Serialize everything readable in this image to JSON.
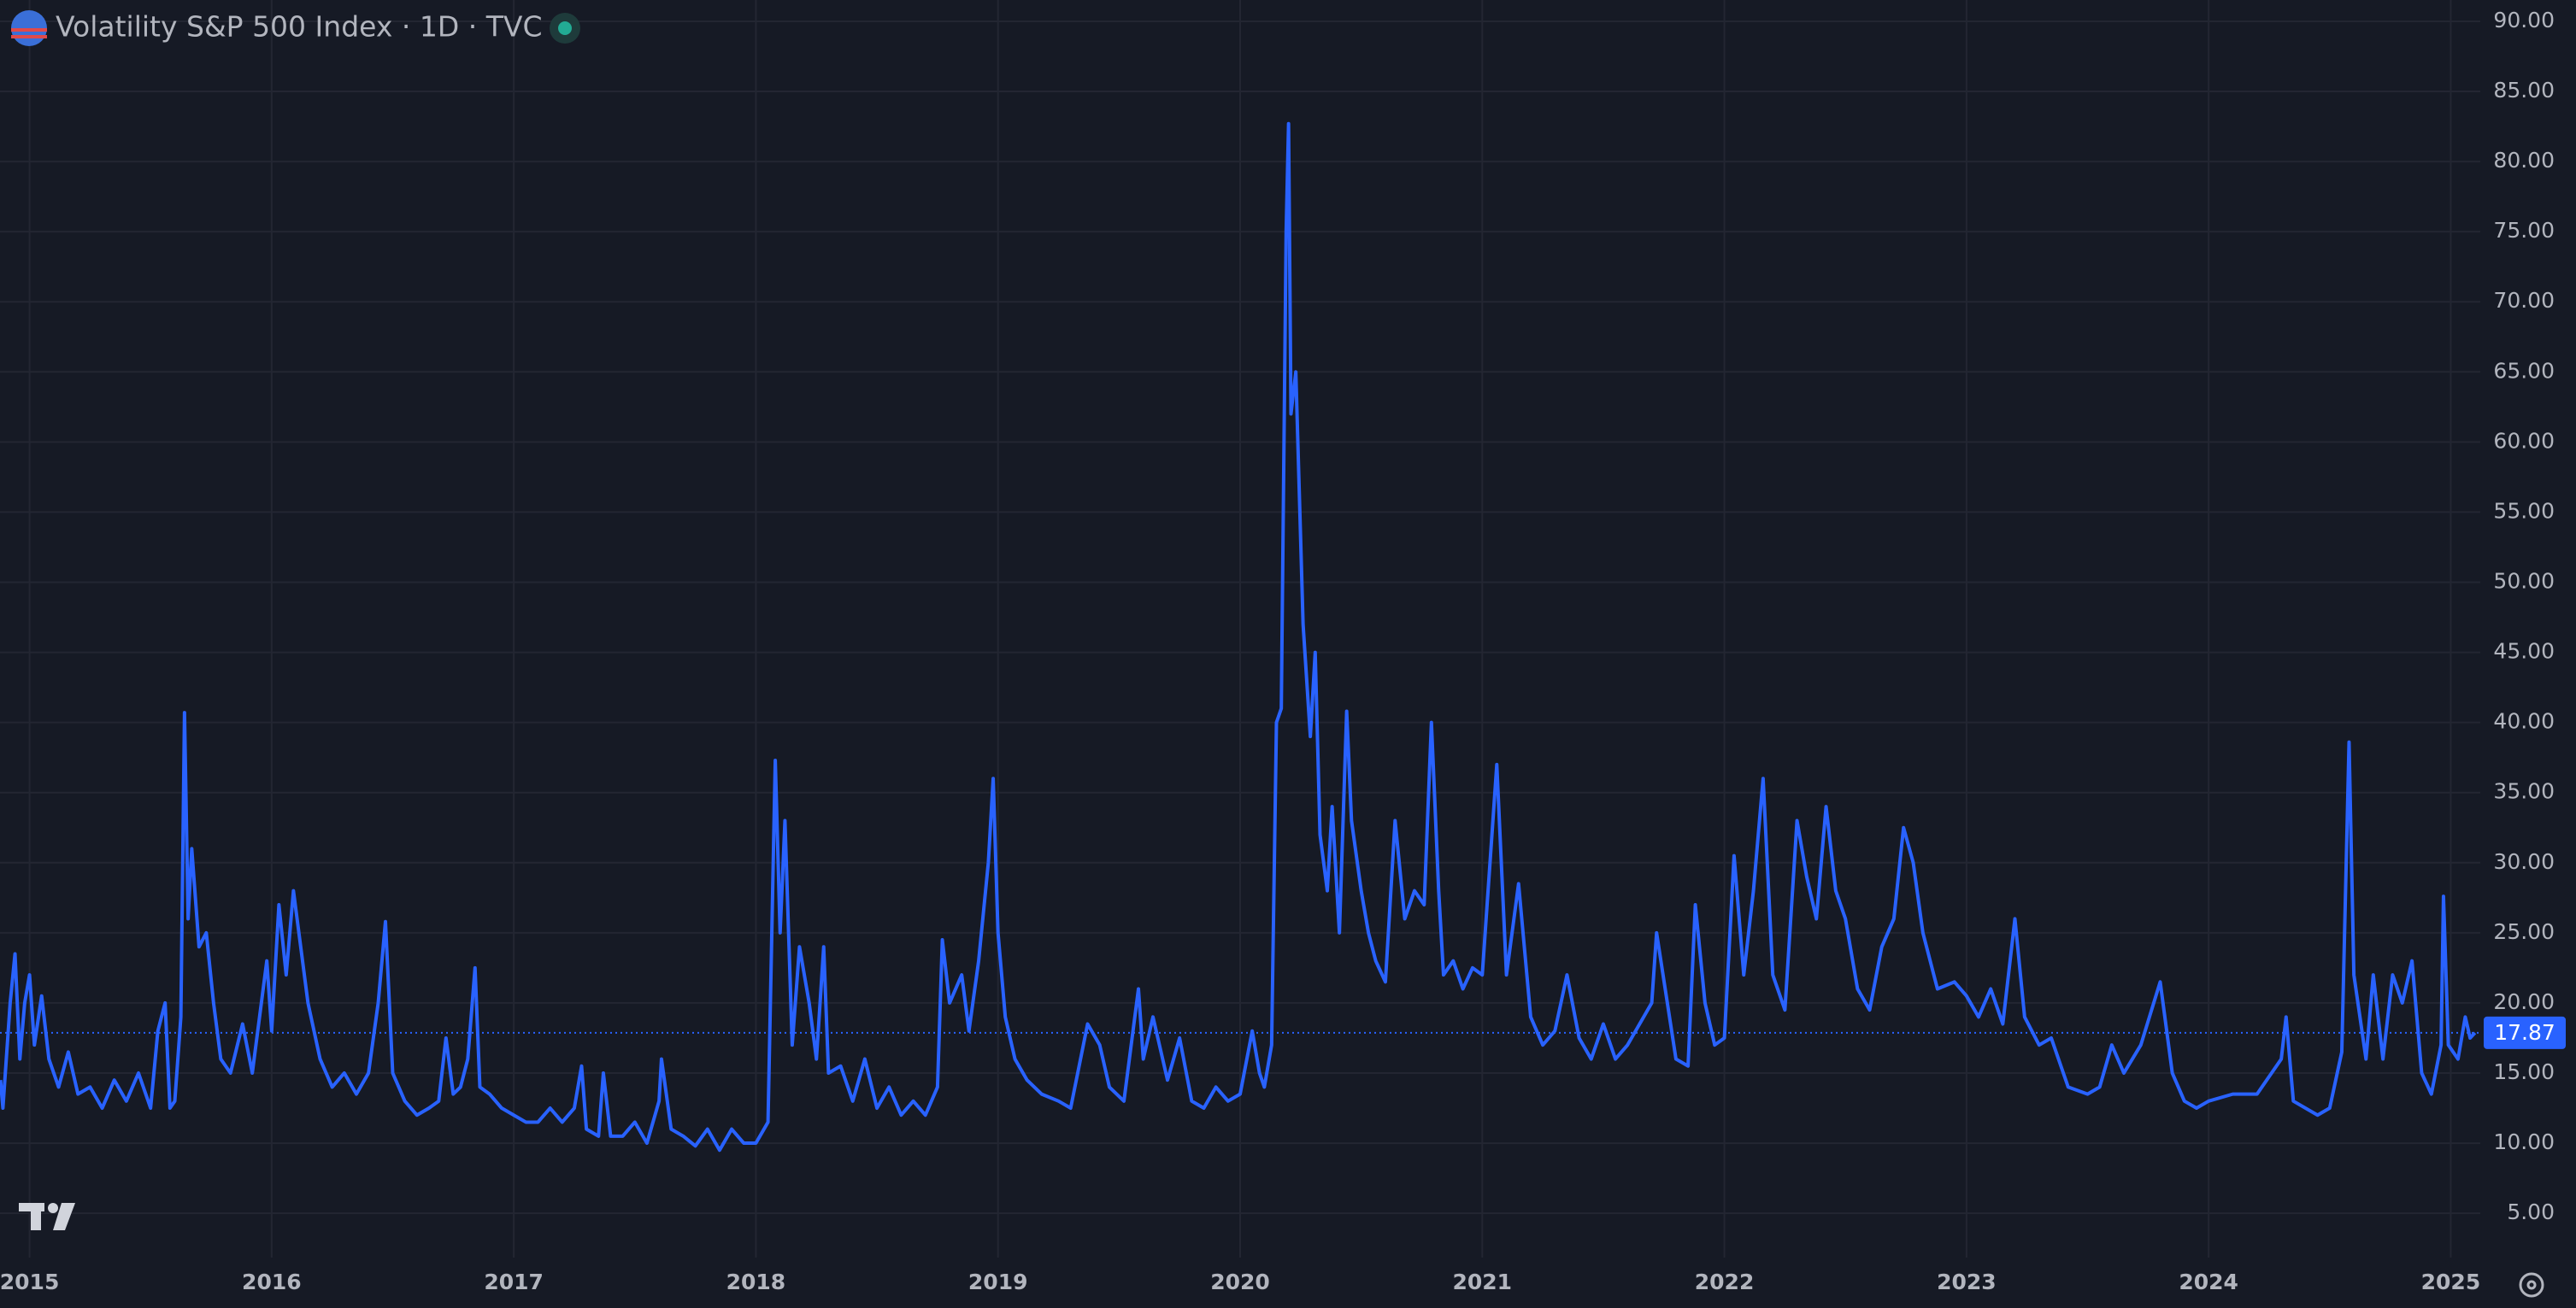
{
  "chart_data": {
    "type": "line",
    "title": "Volatility S&P 500 Index · 1D · TVC",
    "color": "#2962ff",
    "grid": true,
    "last_value": 17.87,
    "xlim": [
      2014.878,
      2025.122
    ],
    "xticks": [
      2015,
      2016,
      2017,
      2018,
      2019,
      2020,
      2021,
      2022,
      2023,
      2024,
      2025
    ],
    "ylim": [
      1.84,
      91.52
    ],
    "yticks": [
      {
        "value": 5,
        "label": "5.00"
      },
      {
        "value": 10,
        "label": "10.00"
      },
      {
        "value": 15,
        "label": "15.00"
      },
      {
        "value": 20,
        "label": "20.00"
      },
      {
        "value": 25,
        "label": "25.00"
      },
      {
        "value": 30,
        "label": "30.00"
      },
      {
        "value": 35,
        "label": "35.00"
      },
      {
        "value": 40,
        "label": "40.00"
      },
      {
        "value": 45,
        "label": "45.00"
      },
      {
        "value": 50,
        "label": "50.00"
      },
      {
        "value": 55,
        "label": "55.00"
      },
      {
        "value": 60,
        "label": "60.00"
      },
      {
        "value": 65,
        "label": "65.00"
      },
      {
        "value": 70,
        "label": "70.00"
      },
      {
        "value": 75,
        "label": "75.00"
      },
      {
        "value": 80,
        "label": "80.00"
      },
      {
        "value": 85,
        "label": "85.00"
      },
      {
        "value": 90,
        "label": "90.00"
      }
    ],
    "x": [
      2014.88,
      2014.89,
      2014.92,
      2014.94,
      2014.96,
      2014.98,
      2015.0,
      2015.02,
      2015.05,
      2015.08,
      2015.12,
      2015.16,
      2015.2,
      2015.25,
      2015.3,
      2015.35,
      2015.4,
      2015.45,
      2015.5,
      2015.53,
      2015.56,
      2015.58,
      2015.6,
      2015.625,
      2015.64,
      2015.655,
      2015.67,
      2015.7,
      2015.73,
      2015.76,
      2015.79,
      2015.83,
      2015.88,
      2015.92,
      2015.95,
      2015.98,
      2016.0,
      2016.03,
      2016.06,
      2016.09,
      2016.12,
      2016.15,
      2016.2,
      2016.25,
      2016.3,
      2016.35,
      2016.4,
      2016.44,
      2016.47,
      2016.5,
      2016.55,
      2016.6,
      2016.65,
      2016.69,
      2016.72,
      2016.75,
      2016.78,
      2016.81,
      2016.84,
      2016.86,
      2016.9,
      2016.95,
      2017.0,
      2017.05,
      2017.1,
      2017.15,
      2017.2,
      2017.25,
      2017.28,
      2017.3,
      2017.35,
      2017.37,
      2017.4,
      2017.45,
      2017.5,
      2017.55,
      2017.6,
      2017.61,
      2017.65,
      2017.7,
      2017.75,
      2017.8,
      2017.85,
      2017.9,
      2017.95,
      2018.0,
      2018.05,
      2018.08,
      2018.1,
      2018.12,
      2018.15,
      2018.18,
      2018.22,
      2018.25,
      2018.28,
      2018.3,
      2018.35,
      2018.4,
      2018.45,
      2018.5,
      2018.55,
      2018.6,
      2018.65,
      2018.7,
      2018.75,
      2018.77,
      2018.8,
      2018.85,
      2018.88,
      2018.92,
      2018.96,
      2018.98,
      2019.0,
      2019.03,
      2019.07,
      2019.12,
      2019.18,
      2019.25,
      2019.3,
      2019.37,
      2019.42,
      2019.46,
      2019.52,
      2019.58,
      2019.6,
      2019.64,
      2019.7,
      2019.75,
      2019.8,
      2019.85,
      2019.9,
      2019.95,
      2020.0,
      2020.05,
      2020.08,
      2020.1,
      2020.13,
      2020.15,
      2020.17,
      2020.19,
      2020.2,
      2020.21,
      2020.23,
      2020.26,
      2020.29,
      2020.31,
      2020.33,
      2020.36,
      2020.38,
      2020.41,
      2020.44,
      2020.46,
      2020.5,
      2020.53,
      2020.56,
      2020.6,
      2020.64,
      2020.68,
      2020.72,
      2020.76,
      2020.79,
      2020.82,
      2020.84,
      2020.88,
      2020.92,
      2020.96,
      2021.0,
      2021.06,
      2021.1,
      2021.15,
      2021.2,
      2021.25,
      2021.3,
      2021.35,
      2021.4,
      2021.45,
      2021.5,
      2021.55,
      2021.6,
      2021.7,
      2021.72,
      2021.8,
      2021.85,
      2021.88,
      2021.92,
      2021.96,
      2022.0,
      2022.04,
      2022.08,
      2022.12,
      2022.16,
      2022.2,
      2022.25,
      2022.3,
      2022.34,
      2022.38,
      2022.42,
      2022.46,
      2022.5,
      2022.55,
      2022.6,
      2022.65,
      2022.7,
      2022.74,
      2022.78,
      2022.82,
      2022.88,
      2022.95,
      2023.0,
      2023.05,
      2023.1,
      2023.15,
      2023.2,
      2023.24,
      2023.3,
      2023.35,
      2023.42,
      2023.5,
      2023.55,
      2023.6,
      2023.65,
      2023.72,
      2023.8,
      2023.85,
      2023.9,
      2023.95,
      2024.0,
      2024.1,
      2024.2,
      2024.3,
      2024.32,
      2024.35,
      2024.45,
      2024.5,
      2024.55,
      2024.58,
      2024.6,
      2024.65,
      2024.68,
      2024.72,
      2024.76,
      2024.8,
      2024.84,
      2024.88,
      2024.92,
      2024.96,
      2024.97,
      2024.99,
      2025.03,
      2025.06,
      2025.08,
      2025.1
    ],
    "values": [
      14.5,
      12.5,
      20,
      23.5,
      16,
      20,
      22,
      17,
      20.5,
      16,
      14,
      16.5,
      13.5,
      14,
      12.5,
      14.5,
      13,
      15,
      12.5,
      18,
      20,
      12.5,
      13,
      19,
      40.7,
      26,
      31,
      24,
      25,
      20,
      16,
      15,
      18.5,
      15,
      19,
      23,
      18,
      27,
      22,
      28,
      24,
      20,
      16,
      14,
      15,
      13.5,
      15,
      20,
      25.8,
      15,
      13,
      12,
      12.5,
      13,
      17.5,
      13.5,
      14,
      16,
      22.5,
      14,
      13.5,
      12.5,
      12,
      11.5,
      11.5,
      12.5,
      11.5,
      12.5,
      15.5,
      11,
      10.5,
      15,
      10.5,
      10.5,
      11.5,
      10,
      13,
      16,
      11,
      10.5,
      9.8,
      11,
      9.5,
      11,
      10,
      10,
      11.5,
      37.3,
      25,
      33,
      17,
      24,
      20,
      16,
      24,
      15,
      15.5,
      13,
      16,
      12.5,
      14,
      12,
      13,
      12,
      14,
      24.5,
      20,
      22,
      18,
      23,
      30,
      36,
      25,
      19,
      16,
      14.5,
      13.5,
      13,
      12.5,
      18.5,
      17,
      14,
      13,
      21,
      16,
      19,
      14.5,
      17.5,
      13,
      12.5,
      14,
      13,
      13.5,
      18,
      15,
      14,
      17,
      40,
      41,
      75,
      82.7,
      62,
      65,
      47,
      39,
      45,
      32,
      28,
      34,
      25,
      40.8,
      33,
      28,
      25,
      23,
      21.5,
      33,
      26,
      28,
      27,
      40,
      28,
      22,
      23,
      21,
      22.5,
      22,
      37,
      22,
      28.5,
      19,
      17,
      18,
      22,
      17.5,
      16,
      18.5,
      16,
      17,
      20,
      25,
      16,
      15.5,
      27,
      20,
      17,
      17.5,
      30.5,
      22,
      28,
      36,
      22,
      19.5,
      33,
      29,
      26,
      34,
      28,
      26,
      21,
      19.5,
      24,
      26,
      32.5,
      30,
      25,
      21,
      21.5,
      20.5,
      19,
      21,
      18.5,
      26,
      19,
      17,
      17.5,
      14,
      13.5,
      14,
      17,
      15,
      17,
      21.5,
      15,
      13,
      12.5,
      13,
      13.5,
      13.5,
      16,
      19,
      13,
      12,
      12.5,
      16.5,
      38.6,
      22,
      16,
      22,
      16,
      22,
      20,
      23,
      15,
      13.5,
      17,
      27.6,
      17,
      16,
      19,
      17.5,
      17.87
    ]
  }
}
